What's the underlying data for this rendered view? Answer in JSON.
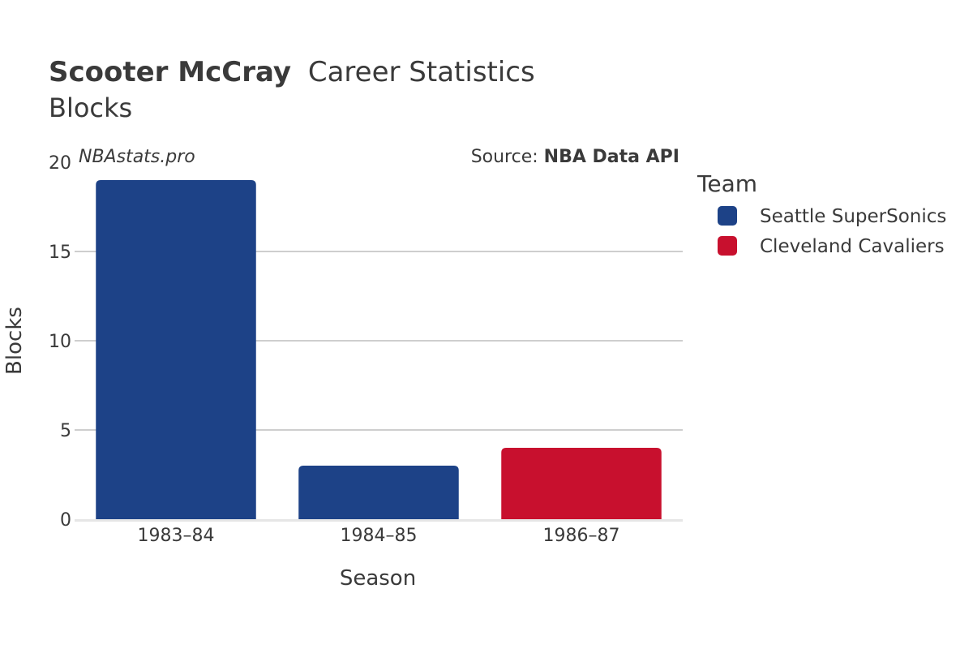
{
  "title": {
    "player": "Scooter McCray",
    "rest": "Career Statistics",
    "subtitle": "Blocks"
  },
  "watermark": "NBAstats.pro",
  "source": {
    "prefix": "Source: ",
    "name": "NBA Data API"
  },
  "legend": {
    "title": "Team",
    "items": [
      {
        "label": "Seattle SuperSonics",
        "color": "#1d4287"
      },
      {
        "label": "Cleveland Cavaliers",
        "color": "#c8102e"
      }
    ]
  },
  "chart_data": {
    "type": "bar",
    "title": "Scooter McCray Career Statistics Blocks",
    "xlabel": "Season",
    "ylabel": "Blocks",
    "categories": [
      "1983–84",
      "1984–85",
      "1986–87"
    ],
    "values": [
      19,
      3,
      4
    ],
    "teams": [
      "Seattle SuperSonics",
      "Seattle SuperSonics",
      "Cleveland Cavaliers"
    ],
    "colors": [
      "#1d4287",
      "#1d4287",
      "#c8102e"
    ],
    "ylim": [
      0,
      20
    ],
    "yticks": [
      0,
      5,
      10,
      15,
      20
    ],
    "grid": true,
    "legend_position": "right"
  }
}
